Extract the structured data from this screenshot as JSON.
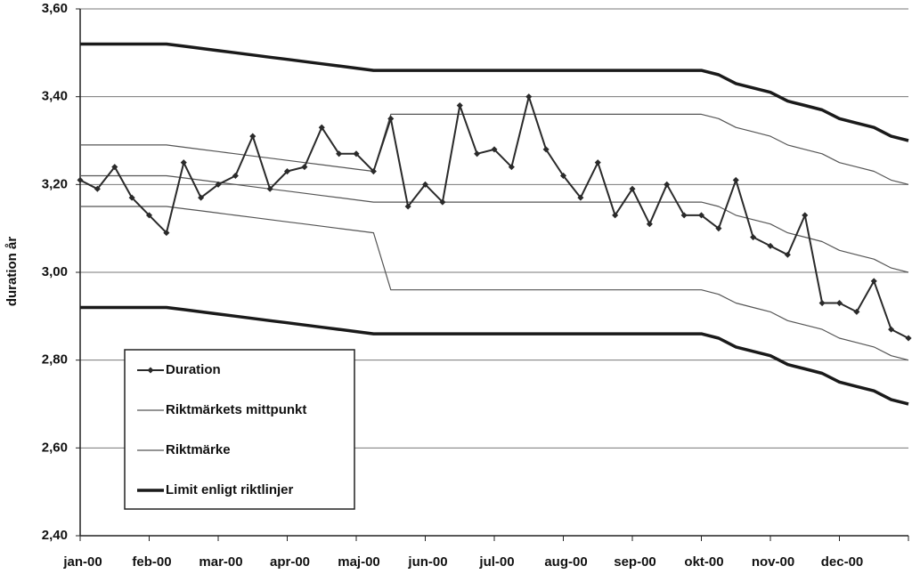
{
  "chart_data": {
    "type": "line",
    "y_label": "duration år",
    "categories": [
      "jan-00",
      null,
      null,
      null,
      "feb-00",
      null,
      null,
      null,
      "mar-00",
      null,
      null,
      null,
      "apr-00",
      null,
      null,
      null,
      "maj-00",
      null,
      null,
      null,
      "jun-00",
      null,
      null,
      null,
      "jul-00",
      null,
      null,
      null,
      "aug-00",
      null,
      null,
      null,
      "sep-00",
      null,
      null,
      null,
      "okt-00",
      null,
      null,
      null,
      "nov-00",
      null,
      null,
      null,
      "dec-00",
      null,
      null,
      null,
      null
    ],
    "ylim": [
      2.4,
      3.6
    ],
    "yticks": [
      {
        "value": 2.4,
        "label": "2,40"
      },
      {
        "value": 2.6,
        "label": "2,60"
      },
      {
        "value": 2.8,
        "label": "2,80"
      },
      {
        "value": 3.0,
        "label": "3,00"
      },
      {
        "value": 3.2,
        "label": "3,20"
      },
      {
        "value": 3.4,
        "label": "3,40"
      },
      {
        "value": 3.6,
        "label": "3,60"
      }
    ],
    "grid": true,
    "legend": "lower left",
    "series": [
      {
        "name": "Duration",
        "color": "#2a2a2a",
        "width": 2,
        "marker": true,
        "values": [
          3.21,
          3.19,
          3.24,
          3.17,
          3.13,
          3.09,
          3.25,
          3.17,
          3.2,
          3.22,
          3.31,
          3.19,
          3.23,
          3.24,
          3.33,
          3.27,
          3.27,
          3.23,
          3.35,
          3.15,
          3.2,
          3.16,
          3.38,
          3.27,
          3.28,
          3.24,
          3.4,
          3.28,
          3.22,
          3.17,
          3.25,
          3.13,
          3.19,
          3.11,
          3.2,
          3.13,
          3.13,
          3.1,
          3.21,
          3.08,
          3.06,
          3.04,
          3.13,
          2.93,
          2.93,
          2.91,
          2.98,
          2.87,
          2.85
        ]
      },
      {
        "name": "Riktmärkets mittpunkt",
        "color": "#555555",
        "width": 1.2,
        "marker": false,
        "values": [
          3.22,
          3.22,
          3.22,
          3.22,
          3.22,
          3.22,
          3.215,
          3.21,
          3.205,
          3.2,
          3.195,
          3.19,
          3.185,
          3.18,
          3.175,
          3.17,
          3.165,
          3.16,
          3.16,
          3.16,
          3.16,
          3.16,
          3.16,
          3.16,
          3.16,
          3.16,
          3.16,
          3.16,
          3.16,
          3.16,
          3.16,
          3.16,
          3.16,
          3.16,
          3.16,
          3.16,
          3.16,
          3.15,
          3.13,
          3.12,
          3.11,
          3.09,
          3.08,
          3.07,
          3.05,
          3.04,
          3.03,
          3.01,
          3.0
        ]
      },
      {
        "name": "Riktmärke",
        "color": "#555555",
        "width": 1.2,
        "marker": false,
        "values": [
          3.29,
          3.29,
          3.29,
          3.29,
          3.29,
          3.29,
          3.285,
          3.28,
          3.275,
          3.27,
          3.265,
          3.26,
          3.255,
          3.25,
          3.245,
          3.24,
          3.235,
          3.23,
          3.36,
          3.36,
          3.36,
          3.36,
          3.36,
          3.36,
          3.36,
          3.36,
          3.36,
          3.36,
          3.36,
          3.36,
          3.36,
          3.36,
          3.36,
          3.36,
          3.36,
          3.36,
          3.36,
          3.35,
          3.33,
          3.32,
          3.31,
          3.29,
          3.28,
          3.27,
          3.25,
          3.24,
          3.23,
          3.21,
          3.2
        ],
        "values_low": [
          3.15,
          3.15,
          3.15,
          3.15,
          3.15,
          3.15,
          3.145,
          3.14,
          3.135,
          3.13,
          3.125,
          3.12,
          3.115,
          3.11,
          3.105,
          3.1,
          3.095,
          3.09,
          2.96,
          2.96,
          2.96,
          2.96,
          2.96,
          2.96,
          2.96,
          2.96,
          2.96,
          2.96,
          2.96,
          2.96,
          2.96,
          2.96,
          2.96,
          2.96,
          2.96,
          2.96,
          2.96,
          2.95,
          2.93,
          2.92,
          2.91,
          2.89,
          2.88,
          2.87,
          2.85,
          2.84,
          2.83,
          2.81,
          2.8
        ]
      },
      {
        "name": "Limit enligt riktlinjer",
        "color": "#1a1a1a",
        "width": 3.5,
        "marker": false,
        "values": [
          3.52,
          3.52,
          3.52,
          3.52,
          3.52,
          3.52,
          3.515,
          3.51,
          3.505,
          3.5,
          3.495,
          3.49,
          3.485,
          3.48,
          3.475,
          3.47,
          3.465,
          3.46,
          3.46,
          3.46,
          3.46,
          3.46,
          3.46,
          3.46,
          3.46,
          3.46,
          3.46,
          3.46,
          3.46,
          3.46,
          3.46,
          3.46,
          3.46,
          3.46,
          3.46,
          3.46,
          3.46,
          3.45,
          3.43,
          3.42,
          3.41,
          3.39,
          3.38,
          3.37,
          3.35,
          3.34,
          3.33,
          3.31,
          3.3
        ],
        "values_low": [
          2.92,
          2.92,
          2.92,
          2.92,
          2.92,
          2.92,
          2.915,
          2.91,
          2.905,
          2.9,
          2.895,
          2.89,
          2.885,
          2.88,
          2.875,
          2.87,
          2.865,
          2.86,
          2.86,
          2.86,
          2.86,
          2.86,
          2.86,
          2.86,
          2.86,
          2.86,
          2.86,
          2.86,
          2.86,
          2.86,
          2.86,
          2.86,
          2.86,
          2.86,
          2.86,
          2.86,
          2.86,
          2.85,
          2.83,
          2.82,
          2.81,
          2.79,
          2.78,
          2.77,
          2.75,
          2.74,
          2.73,
          2.71,
          2.7
        ]
      }
    ]
  }
}
